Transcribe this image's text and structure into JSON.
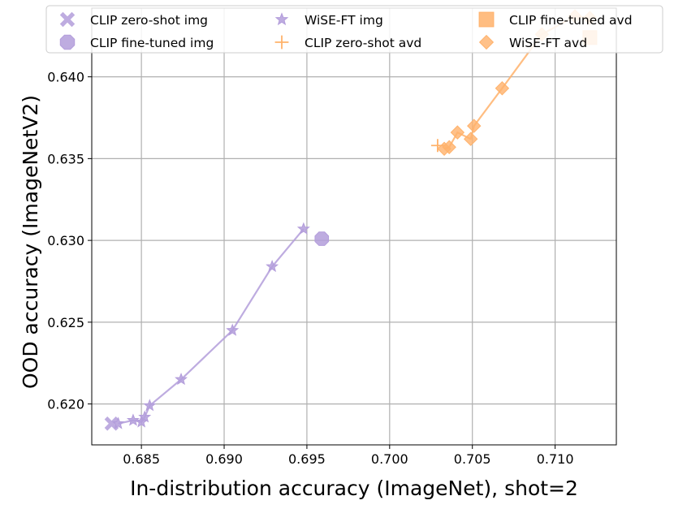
{
  "chart_data": {
    "type": "scatter",
    "xlabel": "In-distribution accuracy (ImageNet), shot=2",
    "ylabel": "OOD accuracy (ImageNetV2)",
    "xlim": [
      0.682,
      0.7137
    ],
    "ylim": [
      0.6175,
      0.6442
    ],
    "xticks": [
      0.685,
      0.69,
      0.695,
      0.7,
      0.705,
      0.71
    ],
    "xtick_labels": [
      "0.685",
      "0.690",
      "0.695",
      "0.700",
      "0.705",
      "0.710"
    ],
    "yticks": [
      0.62,
      0.625,
      0.63,
      0.635,
      0.64
    ],
    "ytick_labels": [
      "0.620",
      "0.625",
      "0.630",
      "0.635",
      "0.640"
    ],
    "grid": true,
    "legend_position": "top",
    "colors": {
      "img": "#b39ddb",
      "avd": "#ffb26b"
    },
    "series": [
      {
        "name": "CLIP zero-shot img",
        "marker": "x",
        "color": "#b39ddb",
        "points": [
          [
            0.6832,
            0.6188
          ]
        ]
      },
      {
        "name": "CLIP fine-tuned img",
        "marker": "octagon",
        "color": "#b39ddb",
        "points": [
          [
            0.6959,
            0.6301
          ]
        ]
      },
      {
        "name": "WiSE-FT img",
        "marker": "star",
        "color": "#b39ddb",
        "line": true,
        "points": [
          [
            0.6836,
            0.6188
          ],
          [
            0.6845,
            0.619
          ],
          [
            0.685,
            0.6189
          ],
          [
            0.6852,
            0.6192
          ],
          [
            0.6855,
            0.6199
          ],
          [
            0.6874,
            0.6215
          ],
          [
            0.6905,
            0.6245
          ],
          [
            0.6929,
            0.6284
          ],
          [
            0.6948,
            0.6307
          ]
        ]
      },
      {
        "name": "CLIP zero-shot avd",
        "marker": "plus",
        "color": "#ffb26b",
        "points": [
          [
            0.7029,
            0.6358
          ]
        ]
      },
      {
        "name": "CLIP fine-tuned avd",
        "marker": "square",
        "color": "#ffb26b",
        "points": [
          [
            0.7121,
            0.6424
          ]
        ]
      },
      {
        "name": "WiSE-FT avd",
        "marker": "diamond",
        "color": "#ffb26b",
        "line": true,
        "points": [
          [
            0.7033,
            0.6356
          ],
          [
            0.7036,
            0.6357
          ],
          [
            0.7041,
            0.6366
          ],
          [
            0.7049,
            0.6362
          ],
          [
            0.7051,
            0.637
          ],
          [
            0.7068,
            0.6393
          ],
          [
            0.7092,
            0.6426
          ],
          [
            0.7112,
            0.6437
          ],
          [
            0.7121,
            0.6436
          ]
        ]
      }
    ]
  }
}
